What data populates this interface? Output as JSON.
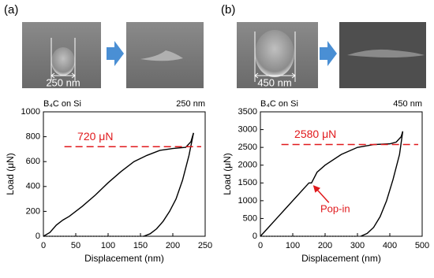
{
  "chart_data": [
    {
      "type": "line",
      "panel_label": "(a)",
      "image_label": "250 nm",
      "title": "B₄C on Si",
      "subtitle": "250 nm",
      "xlabel": "Displacement (nm)",
      "ylabel": "Load (μN)",
      "xlim": [
        0,
        250
      ],
      "xticks": [
        0,
        50,
        100,
        150,
        200,
        250
      ],
      "ylim": [
        0,
        1000
      ],
      "yticks": [
        0,
        200,
        400,
        600,
        800,
        1000
      ],
      "series": [
        {
          "color": "#000000",
          "dash": "solid",
          "x": [
            0,
            10,
            20,
            30,
            40,
            60,
            80,
            100,
            120,
            140,
            160,
            180,
            200,
            210,
            220,
            228,
            232
          ],
          "values": [
            0,
            30,
            90,
            130,
            160,
            240,
            330,
            430,
            520,
            600,
            650,
            690,
            705,
            710,
            715,
            760,
            830
          ]
        },
        {
          "color": "#000000",
          "dash": "solid",
          "x": [
            232,
            225,
            215,
            205,
            195,
            185,
            175,
            165,
            155
          ],
          "values": [
            830,
            650,
            450,
            300,
            200,
            120,
            60,
            20,
            0
          ]
        },
        {
          "color": "#000000",
          "dash": "dotted",
          "x": [
            0,
            155
          ],
          "values": [
            0,
            0
          ]
        }
      ],
      "reference": {
        "label": "720 μN",
        "value": 720,
        "color": "#e0191c"
      }
    },
    {
      "type": "line",
      "panel_label": "(b)",
      "image_label": "450 nm",
      "title": "B₄C on Si",
      "subtitle": "450 nm",
      "xlabel": "Displacement (nm)",
      "ylabel": "Load (μN)",
      "xlim": [
        0,
        500
      ],
      "xticks": [
        0,
        100,
        200,
        300,
        400,
        500
      ],
      "ylim": [
        0,
        3500
      ],
      "yticks": [
        0,
        500,
        1000,
        1500,
        2000,
        2500,
        3000,
        3500
      ],
      "series": [
        {
          "color": "#000000",
          "dash": "solid",
          "x": [
            0,
            20,
            50,
            80,
            110,
            140,
            150,
            158,
            175,
            200,
            250,
            300,
            350,
            400,
            420,
            435,
            440
          ],
          "values": [
            0,
            200,
            500,
            800,
            1100,
            1400,
            1500,
            1500,
            1800,
            2000,
            2300,
            2500,
            2580,
            2600,
            2650,
            2800,
            2950
          ]
        },
        {
          "color": "#000000",
          "dash": "solid",
          "x": [
            440,
            430,
            410,
            390,
            370,
            350,
            330,
            310
          ],
          "values": [
            2950,
            2300,
            1600,
            1000,
            550,
            250,
            80,
            0
          ]
        },
        {
          "color": "#000000",
          "dash": "dotted",
          "x": [
            0,
            300
          ],
          "values": [
            0,
            0
          ]
        }
      ],
      "reference": {
        "label": "2580 μN",
        "value": 2580,
        "color": "#e0191c"
      },
      "annotation": {
        "text": "Pop-in",
        "x": 158,
        "y": 1500,
        "color": "#e0191c"
      }
    }
  ]
}
